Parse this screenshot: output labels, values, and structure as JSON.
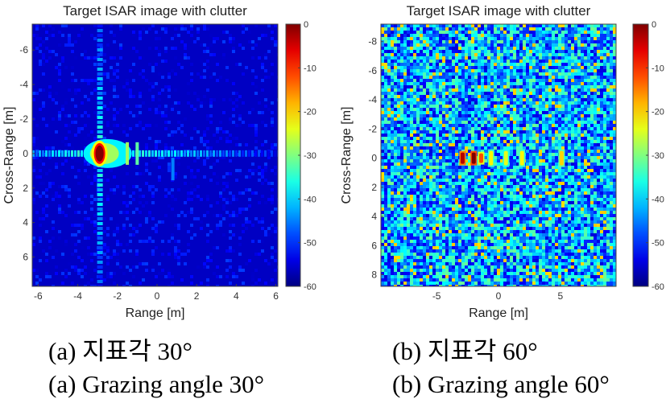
{
  "chart_data": [
    {
      "type": "heatmap",
      "title": "Target ISAR image with clutter",
      "xlabel": "Range [m]",
      "ylabel": "Cross-Range [m]",
      "xlim": [
        -6.3,
        6.1
      ],
      "ylim": [
        -7.5,
        7.7
      ],
      "y_reversed": true,
      "x_ticks": [
        -6,
        -4,
        -2,
        0,
        2,
        4,
        6
      ],
      "y_ticks": [
        -6,
        -4,
        -2,
        0,
        2,
        4,
        6
      ],
      "colorbar": {
        "min": -60,
        "max": 0,
        "ticks": [
          0,
          -10,
          -20,
          -30,
          -40,
          -50,
          -60
        ],
        "colormap": "jet"
      },
      "noise_floor_db": -56,
      "scatterers": [
        {
          "x": -2.9,
          "y": 0.0,
          "db": 0
        },
        {
          "x": -1.5,
          "y": 0.0,
          "db": -28
        },
        {
          "x": -1.0,
          "y": 0.0,
          "db": -32
        },
        {
          "x": 0.8,
          "y": 0.9,
          "db": -45
        }
      ]
    },
    {
      "type": "heatmap",
      "title": "Target ISAR image with clutter",
      "xlabel": "Range [m]",
      "ylabel": "Cross-Range [m]",
      "xlim": [
        -9.5,
        9.5
      ],
      "ylim": [
        -9.2,
        8.8
      ],
      "y_reversed": true,
      "x_ticks": [
        -5,
        0,
        5
      ],
      "y_ticks": [
        -8,
        -6,
        -4,
        -2,
        0,
        2,
        4,
        6,
        8
      ],
      "colorbar": {
        "min": -60,
        "max": 0,
        "ticks": [
          0,
          -10,
          -20,
          -30,
          -40,
          -50,
          -60
        ],
        "colormap": "jet"
      },
      "noise_floor_db": -42,
      "scatterers": [
        {
          "x": -2.9,
          "y": 0.0,
          "db": -3
        },
        {
          "x": -2.0,
          "y": 0.0,
          "db": 0
        },
        {
          "x": -1.4,
          "y": 0.0,
          "db": -12
        },
        {
          "x": -0.6,
          "y": 0.0,
          "db": -22
        },
        {
          "x": 0.6,
          "y": 0.0,
          "db": -24
        },
        {
          "x": 1.9,
          "y": 0.0,
          "db": -22
        },
        {
          "x": 5.1,
          "y": 0.0,
          "db": -20
        }
      ]
    }
  ],
  "captions": {
    "a_korean": "(a) 지표각 30°",
    "a_english": "(a) Grazing angle 30°",
    "b_korean": "(b) 지표각 60°",
    "b_english": "(b) Grazing angle 60°"
  }
}
